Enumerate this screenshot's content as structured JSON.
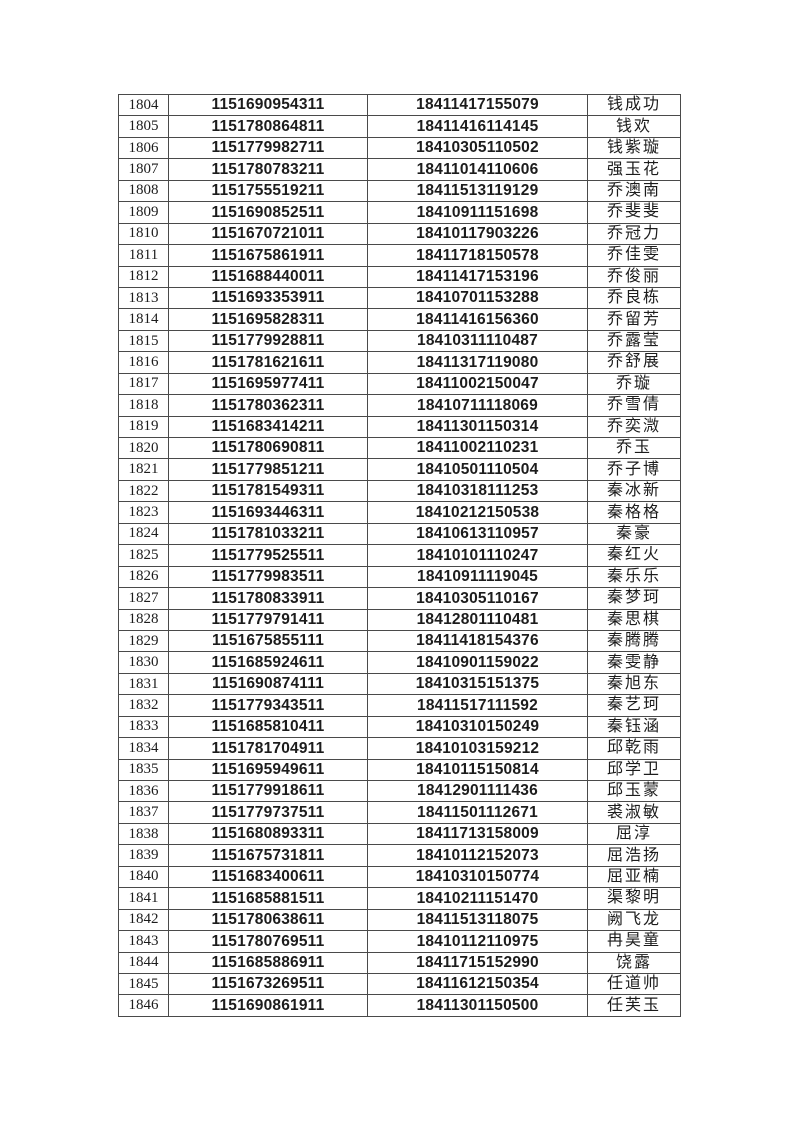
{
  "page": {
    "background": "#ffffff"
  },
  "table": {
    "border_color": "#4a4a4a",
    "text_color": "#1c1c1c",
    "first_row_number": "1804",
    "last_row_number": "1846",
    "rows": [
      [
        "1804",
        "1151690954311",
        "18411417155079",
        "钱成功"
      ],
      [
        "1805",
        "1151780864811",
        "18411416114145",
        "钱欢"
      ],
      [
        "1806",
        "1151779982711",
        "18410305110502",
        "钱紫璇"
      ],
      [
        "1807",
        "1151780783211",
        "18411014110606",
        "强玉花"
      ],
      [
        "1808",
        "1151755519211",
        "18411513119129",
        "乔澳南"
      ],
      [
        "1809",
        "1151690852511",
        "18410911151698",
        "乔斐斐"
      ],
      [
        "1810",
        "1151670721011",
        "18410117903226",
        "乔冠力"
      ],
      [
        "1811",
        "1151675861911",
        "18411718150578",
        "乔佳雯"
      ],
      [
        "1812",
        "1151688440011",
        "18411417153196",
        "乔俊丽"
      ],
      [
        "1813",
        "1151693353911",
        "18410701153288",
        "乔良栋"
      ],
      [
        "1814",
        "1151695828311",
        "18411416156360",
        "乔留芳"
      ],
      [
        "1815",
        "1151779928811",
        "18410311110487",
        "乔露莹"
      ],
      [
        "1816",
        "1151781621611",
        "18411317119080",
        "乔舒展"
      ],
      [
        "1817",
        "1151695977411",
        "18411002150047",
        "乔璇"
      ],
      [
        "1818",
        "1151780362311",
        "18410711118069",
        "乔雪倩"
      ],
      [
        "1819",
        "1151683414211",
        "18411301150314",
        "乔奕溦"
      ],
      [
        "1820",
        "1151780690811",
        "18411002110231",
        "乔玉"
      ],
      [
        "1821",
        "1151779851211",
        "18410501110504",
        "乔子博"
      ],
      [
        "1822",
        "1151781549311",
        "18410318111253",
        "秦冰新"
      ],
      [
        "1823",
        "1151693446311",
        "18410212150538",
        "秦格格"
      ],
      [
        "1824",
        "1151781033211",
        "18410613110957",
        "秦豪"
      ],
      [
        "1825",
        "1151779525511",
        "18410101110247",
        "秦红火"
      ],
      [
        "1826",
        "1151779983511",
        "18410911119045",
        "秦乐乐"
      ],
      [
        "1827",
        "1151780833911",
        "18410305110167",
        "秦梦珂"
      ],
      [
        "1828",
        "1151779791411",
        "18412801110481",
        "秦思棋"
      ],
      [
        "1829",
        "1151675855111",
        "18411418154376",
        "秦腾腾"
      ],
      [
        "1830",
        "1151685924611",
        "18410901159022",
        "秦雯静"
      ],
      [
        "1831",
        "1151690874111",
        "18410315151375",
        "秦旭东"
      ],
      [
        "1832",
        "1151779343511",
        "18411517111592",
        "秦艺珂"
      ],
      [
        "1833",
        "1151685810411",
        "18410310150249",
        "秦钰涵"
      ],
      [
        "1834",
        "1151781704911",
        "18410103159212",
        "邱乾雨"
      ],
      [
        "1835",
        "1151695949611",
        "18410115150814",
        "邱学卫"
      ],
      [
        "1836",
        "1151779918611",
        "18412901111436",
        "邱玉蒙"
      ],
      [
        "1837",
        "1151779737511",
        "18411501112671",
        "裘淑敏"
      ],
      [
        "1838",
        "1151680893311",
        "18411713158009",
        "屈淳"
      ],
      [
        "1839",
        "1151675731811",
        "18410112152073",
        "屈浩扬"
      ],
      [
        "1840",
        "1151683400611",
        "18410310150774",
        "屈亚楠"
      ],
      [
        "1841",
        "1151685881511",
        "18410211151470",
        "渠黎明"
      ],
      [
        "1842",
        "1151780638611",
        "18411513118075",
        "阙飞龙"
      ],
      [
        "1843",
        "1151780769511",
        "18410112110975",
        "冉昊童"
      ],
      [
        "1844",
        "1151685886911",
        "18411715152990",
        "饶露"
      ],
      [
        "1845",
        "1151673269511",
        "18411612150354",
        "任道帅"
      ],
      [
        "1846",
        "1151690861911",
        "18411301150500",
        "任芙玉"
      ]
    ]
  }
}
